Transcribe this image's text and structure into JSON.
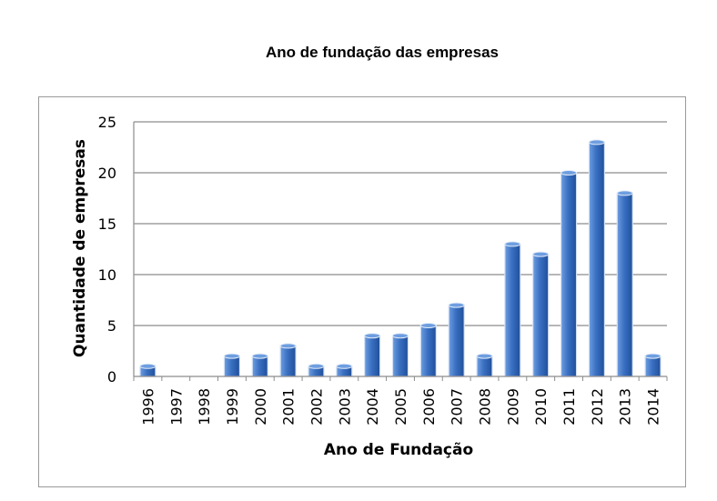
{
  "page": {
    "title": "Ano de fundação das empresas"
  },
  "chart_data": {
    "type": "bar",
    "title": "Ano de fundação das empresas",
    "xlabel": "Ano de Fundação",
    "ylabel": "Quantidade de empresas",
    "categories": [
      "1996",
      "1997",
      "1998",
      "1999",
      "2000",
      "2001",
      "2002",
      "2003",
      "2004",
      "2005",
      "2006",
      "2007",
      "2008",
      "2009",
      "2010",
      "2011",
      "2012",
      "2013",
      "2014"
    ],
    "values": [
      1,
      0,
      0,
      2,
      2,
      3,
      1,
      1,
      4,
      4,
      5,
      7,
      2,
      13,
      12,
      20,
      23,
      18,
      2
    ],
    "ylim": [
      0,
      25
    ],
    "yticks": [
      0,
      5,
      10,
      15,
      20,
      25
    ],
    "grid": true,
    "legend": "none",
    "bar_color": "#3a70c2",
    "bar_color_dark": "#1f4f9a",
    "bar_color_light": "#6e9ee0",
    "grid_color": "#8c8c8c"
  }
}
